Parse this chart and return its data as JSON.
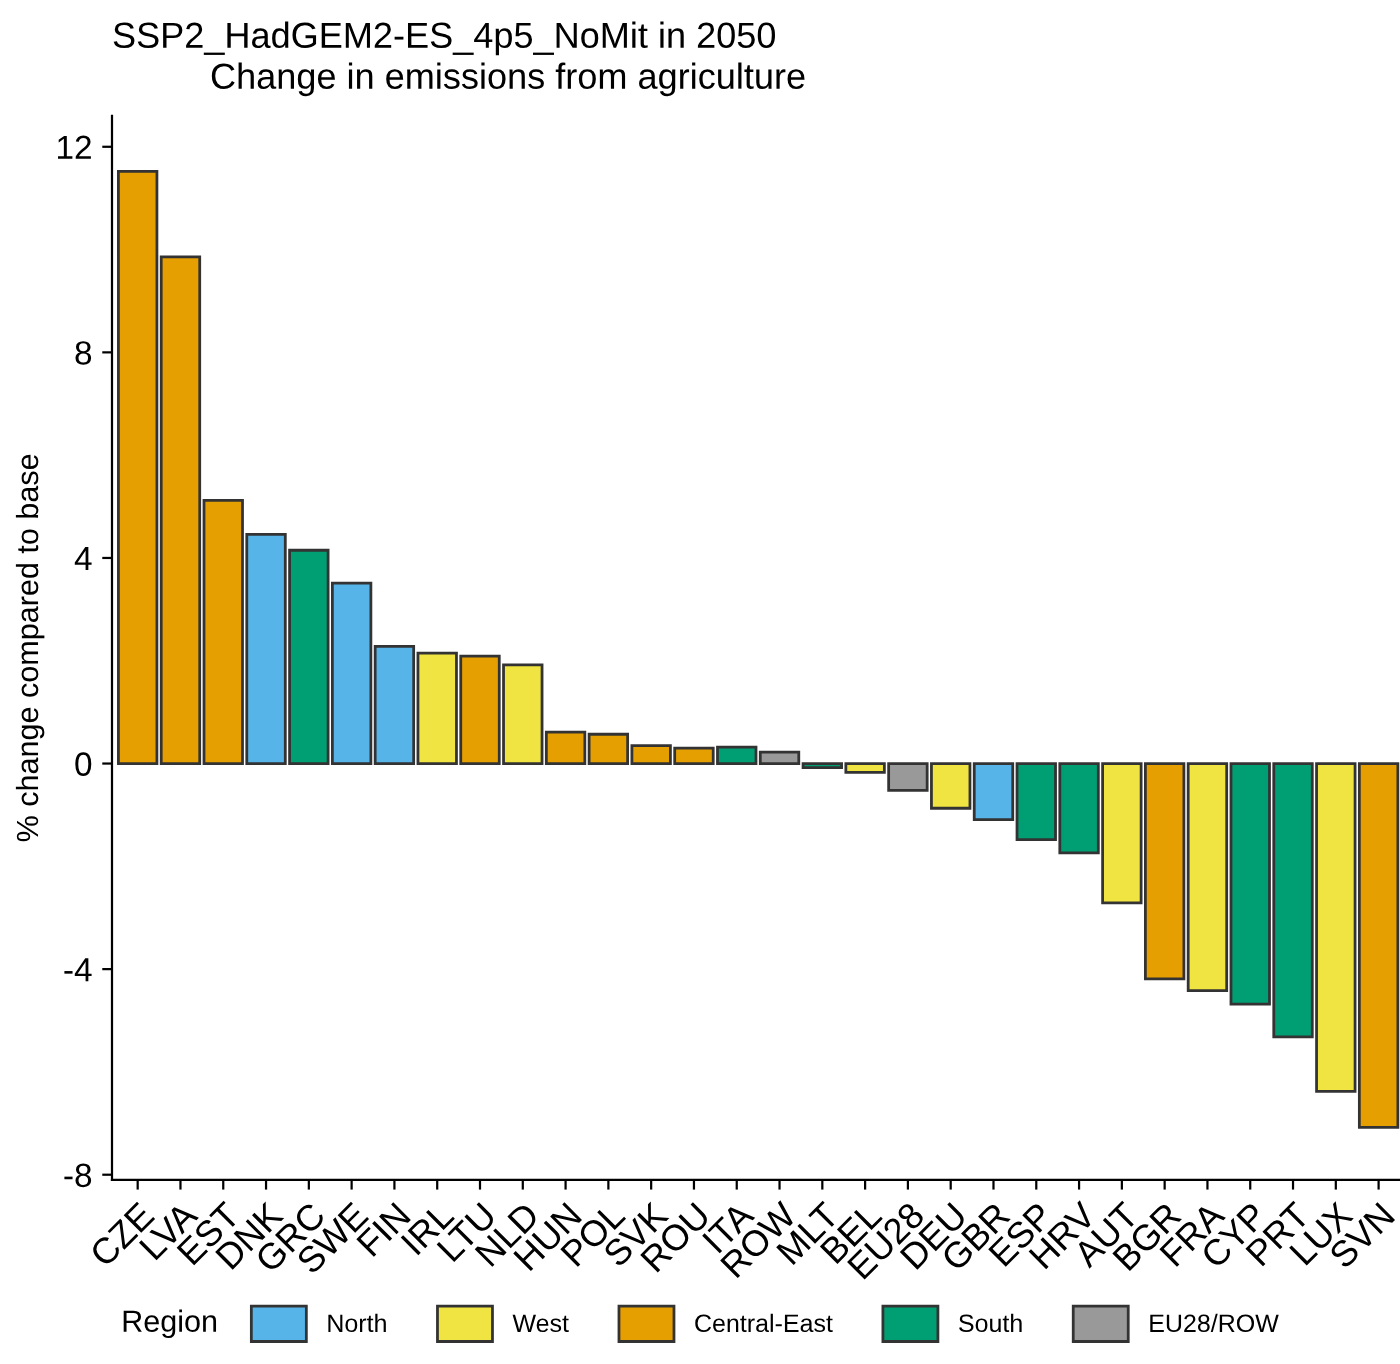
{
  "chart_data": {
    "type": "bar",
    "title": "SSP2_HadGEM2-ES_4p5_NoMit in 2050",
    "subtitle": "Change in emissions from agriculture",
    "ylabel": "% change compared to base",
    "legend_title": "Region",
    "categories": [
      "CZE",
      "LVA",
      "EST",
      "DNK",
      "GRC",
      "SWE",
      "FIN",
      "IRL",
      "LTU",
      "NLD",
      "HUN",
      "POL",
      "SVK",
      "ROU",
      "ITA",
      "ROW",
      "MLT",
      "BEL",
      "EU28",
      "DEU",
      "GBR",
      "ESP",
      "HRV",
      "AUT",
      "BGR",
      "FRA",
      "CYP",
      "PRT",
      "LUX",
      "SVN"
    ],
    "stacked": true,
    "series": [
      {
        "name": "North",
        "color": "#56b4e9",
        "values": [
          null,
          null,
          null,
          4.46,
          null,
          3.51,
          2.28,
          null,
          null,
          null,
          null,
          null,
          null,
          null,
          null,
          null,
          null,
          null,
          null,
          null,
          -1.09,
          null,
          null,
          null,
          null,
          null,
          null,
          null,
          null,
          null
        ]
      },
      {
        "name": "West",
        "color": "#f0e442",
        "values": [
          null,
          null,
          null,
          null,
          null,
          null,
          null,
          2.15,
          null,
          1.92,
          null,
          null,
          null,
          null,
          null,
          null,
          null,
          -0.17,
          null,
          -0.87,
          null,
          null,
          null,
          -2.71,
          null,
          -4.42,
          null,
          null,
          -6.38,
          null
        ]
      },
      {
        "name": "Central-East",
        "color": "#e69f00",
        "values": [
          11.52,
          9.86,
          5.12,
          null,
          null,
          null,
          null,
          null,
          2.09,
          null,
          0.61,
          0.57,
          0.35,
          0.3,
          null,
          null,
          null,
          null,
          null,
          null,
          null,
          null,
          null,
          null,
          -4.19,
          null,
          null,
          null,
          null,
          -7.08
        ]
      },
      {
        "name": "South",
        "color": "#009e73",
        "values": [
          null,
          null,
          null,
          null,
          4.15,
          null,
          null,
          null,
          null,
          null,
          null,
          null,
          null,
          null,
          0.32,
          null,
          -0.08,
          null,
          null,
          null,
          null,
          -1.48,
          -1.74,
          null,
          null,
          null,
          -4.68,
          -5.32,
          null,
          null
        ]
      },
      {
        "name": "EU28/ROW",
        "color": "#999999",
        "values": [
          null,
          null,
          null,
          null,
          null,
          null,
          null,
          null,
          null,
          null,
          null,
          null,
          null,
          null,
          null,
          0.22,
          null,
          null,
          -0.52,
          null,
          null,
          null,
          null,
          null,
          null,
          null,
          null,
          null,
          null,
          null
        ]
      }
    ],
    "ylim": [
      -8.1,
      12.6
    ],
    "yticks": [
      -8,
      -4,
      0,
      4,
      8,
      12
    ],
    "grid": false,
    "legend": "bottom"
  }
}
